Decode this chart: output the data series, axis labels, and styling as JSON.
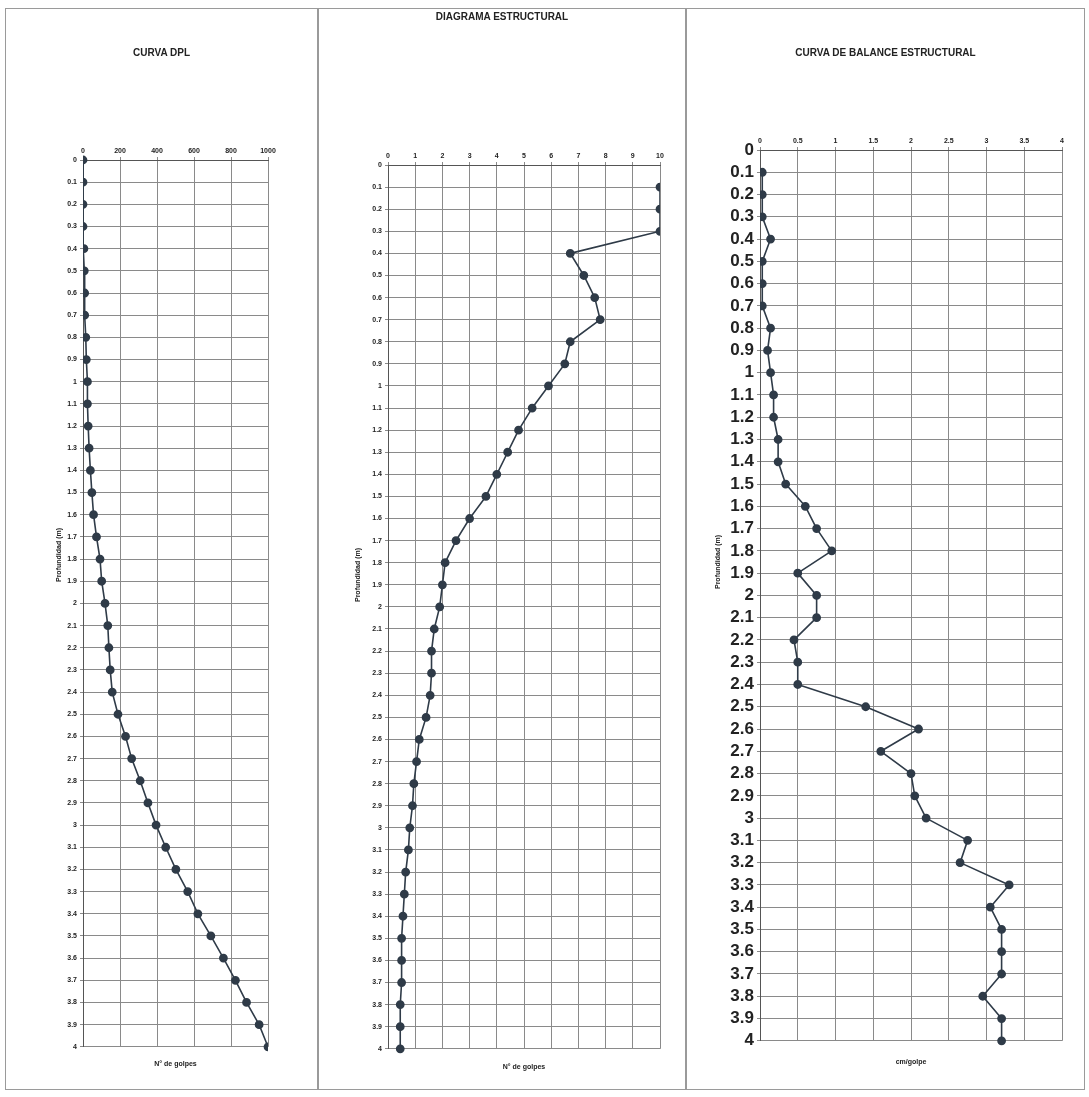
{
  "chart_data": [
    {
      "type": "line",
      "orientation": "horizontal",
      "title": "CURVA DPL",
      "xlabel": "N° de golpes",
      "ylabel": "Profundidad (m)",
      "color": "#2f3b48",
      "marker": "circle",
      "grid": true,
      "categories": [
        "0",
        "0.1",
        "0.2",
        "0.3",
        "0.4",
        "0.5",
        "0.6",
        "0.7",
        "0.8",
        "0.9",
        "1",
        "1.1",
        "1.2",
        "1.3",
        "1.4",
        "1.5",
        "1.6",
        "1.7",
        "1.8",
        "1.9",
        "2",
        "2.1",
        "2.2",
        "2.3",
        "2.4",
        "2.5",
        "2.6",
        "2.7",
        "2.8",
        "2.9",
        "3",
        "3.1",
        "3.2",
        "3.3",
        "3.4",
        "3.5",
        "3.6",
        "3.7",
        "3.8",
        "3.9",
        "4"
      ],
      "values": [
        0,
        0,
        0,
        0,
        5,
        7,
        9,
        9,
        15,
        18,
        24,
        24,
        28,
        33,
        40,
        48,
        57,
        73,
        92,
        101,
        119,
        134,
        140,
        147,
        158,
        189,
        230,
        263,
        309,
        351,
        395,
        447,
        502,
        566,
        621,
        691,
        759,
        824,
        884,
        952,
        1000
      ],
      "xlim": [
        0,
        1000
      ],
      "xticks": [
        0,
        200,
        400,
        600,
        800,
        1000
      ]
    },
    {
      "type": "line",
      "orientation": "horizontal",
      "title": "DIAGRAMA ESTRUCTURAL",
      "xlabel": "N° de golpes",
      "ylabel": "Profundidad (m)",
      "color": "#2f3b48",
      "marker": "circle",
      "grid": true,
      "categories": [
        "0",
        "0.1",
        "0.2",
        "0.3",
        "0.4",
        "0.5",
        "0.6",
        "0.7",
        "0.8",
        "0.9",
        "1",
        "1.1",
        "1.2",
        "1.3",
        "1.4",
        "1.5",
        "1.6",
        "1.7",
        "1.8",
        "1.9",
        "2",
        "2.1",
        "2.2",
        "2.3",
        "2.4",
        "2.5",
        "2.6",
        "2.7",
        "2.8",
        "2.9",
        "3",
        "3.1",
        "3.2",
        "3.3",
        "3.4",
        "3.5",
        "3.6",
        "3.7",
        "3.8",
        "3.9",
        "4"
      ],
      "values": [
        null,
        10,
        10,
        10,
        6.7,
        7.2,
        7.6,
        7.8,
        6.7,
        6.5,
        5.9,
        5.3,
        4.8,
        4.4,
        4,
        3.6,
        3,
        2.5,
        2.1,
        2,
        1.9,
        1.7,
        1.6,
        1.6,
        1.55,
        1.4,
        1.15,
        1.05,
        0.95,
        0.9,
        0.8,
        0.75,
        0.65,
        0.6,
        0.55,
        0.5,
        0.5,
        0.5,
        0.45,
        0.45,
        0.45
      ],
      "xlim": [
        0,
        10
      ],
      "xticks": [
        0,
        1,
        2,
        3,
        4,
        5,
        6,
        7,
        8,
        9,
        10
      ]
    },
    {
      "type": "line",
      "orientation": "horizontal",
      "title": "CURVA DE BALANCE ESTRUCTURAL",
      "xlabel": "cm/golpe",
      "ylabel": "Profundidad (m)",
      "color": "#2f3b48",
      "marker": "circle",
      "grid": true,
      "categories": [
        "0",
        "0.1",
        "0.2",
        "0.3",
        "0.4",
        "0.5",
        "0.6",
        "0.7",
        "0.8",
        "0.9",
        "1",
        "1.1",
        "1.2",
        "1.3",
        "1.4",
        "1.5",
        "1.6",
        "1.7",
        "1.8",
        "1.9",
        "2",
        "2.1",
        "2.2",
        "2.3",
        "2.4",
        "2.5",
        "2.6",
        "2.7",
        "2.8",
        "2.9",
        "3",
        "3.1",
        "3.2",
        "3.3",
        "3.4",
        "3.5",
        "3.6",
        "3.7",
        "3.8",
        "3.9",
        "4"
      ],
      "values": [
        null,
        0.03,
        0.03,
        0.03,
        0.14,
        0.03,
        0.03,
        0.03,
        0.14,
        0.1,
        0.14,
        0.18,
        0.18,
        0.24,
        0.24,
        0.34,
        0.6,
        0.75,
        0.95,
        0.5,
        0.75,
        0.75,
        0.45,
        0.5,
        0.5,
        1.4,
        2.1,
        1.6,
        2,
        2.05,
        2.2,
        2.75,
        2.65,
        3.3,
        3.05,
        3.2,
        3.2,
        3.2,
        2.95,
        3.2,
        3.2
      ],
      "xlim": [
        0,
        4
      ],
      "xticks": [
        0,
        0.5,
        1,
        1.5,
        2,
        2.5,
        3,
        3.5,
        4
      ]
    }
  ]
}
